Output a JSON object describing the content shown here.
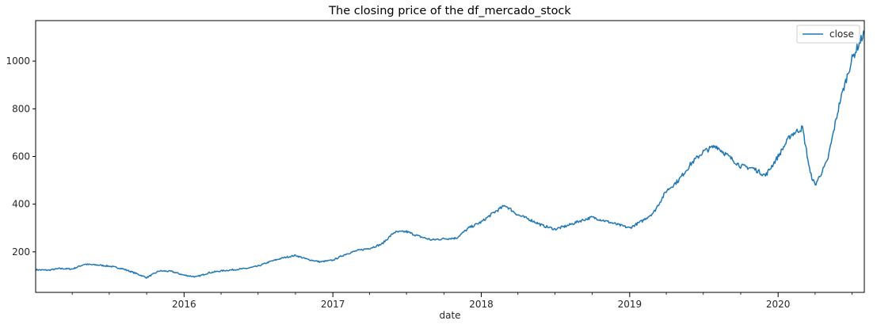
{
  "chart_data": {
    "type": "line",
    "title": "The closing price of the df_mercado_stock",
    "xlabel": "date",
    "ylabel": "",
    "x_ticks": [
      "2016",
      "2017",
      "2018",
      "2019",
      "2020"
    ],
    "y_ticks": [
      200,
      400,
      600,
      800,
      1000
    ],
    "xlim": [
      "2015-01-01",
      "2020-07-31"
    ],
    "ylim": [
      30,
      1170
    ],
    "grid": false,
    "legend_position": "top-right",
    "line_color": "#1f77b4",
    "series": [
      {
        "name": "close",
        "x": [
          "2015-01-02",
          "2015-02-01",
          "2015-03-01",
          "2015-04-01",
          "2015-05-01",
          "2015-06-01",
          "2015-07-01",
          "2015-08-01",
          "2015-09-01",
          "2015-10-01",
          "2015-11-01",
          "2015-12-01",
          "2016-01-01",
          "2016-02-01",
          "2016-03-01",
          "2016-04-01",
          "2016-05-01",
          "2016-06-01",
          "2016-07-01",
          "2016-08-01",
          "2016-09-01",
          "2016-10-01",
          "2016-11-01",
          "2016-12-01",
          "2017-01-01",
          "2017-02-01",
          "2017-03-01",
          "2017-04-01",
          "2017-05-01",
          "2017-06-01",
          "2017-07-01",
          "2017-08-01",
          "2017-09-01",
          "2017-10-01",
          "2017-11-01",
          "2017-12-01",
          "2018-01-01",
          "2018-02-01",
          "2018-03-01",
          "2018-04-01",
          "2018-05-01",
          "2018-06-01",
          "2018-07-01",
          "2018-08-01",
          "2018-09-01",
          "2018-10-01",
          "2018-11-01",
          "2018-12-01",
          "2019-01-01",
          "2019-02-01",
          "2019-03-01",
          "2019-04-01",
          "2019-05-01",
          "2019-06-01",
          "2019-07-01",
          "2019-08-01",
          "2019-09-01",
          "2019-10-01",
          "2019-11-01",
          "2019-12-01",
          "2020-01-01",
          "2020-02-01",
          "2020-03-01",
          "2020-03-20",
          "2020-04-01",
          "2020-05-01",
          "2020-06-01",
          "2020-07-01",
          "2020-07-31"
        ],
        "values": [
          125,
          123,
          130,
          128,
          148,
          145,
          140,
          130,
          112,
          92,
          120,
          118,
          102,
          95,
          112,
          120,
          125,
          130,
          140,
          160,
          175,
          185,
          168,
          158,
          165,
          190,
          205,
          215,
          232,
          282,
          285,
          265,
          250,
          255,
          258,
          300,
          325,
          365,
          395,
          355,
          335,
          310,
          295,
          310,
          330,
          345,
          330,
          315,
          300,
          330,
          365,
          455,
          500,
          570,
          620,
          645,
          600,
          560,
          550,
          520,
          600,
          690,
          720,
          530,
          480,
          580,
          830,
          1010,
          1120
        ]
      }
    ]
  }
}
